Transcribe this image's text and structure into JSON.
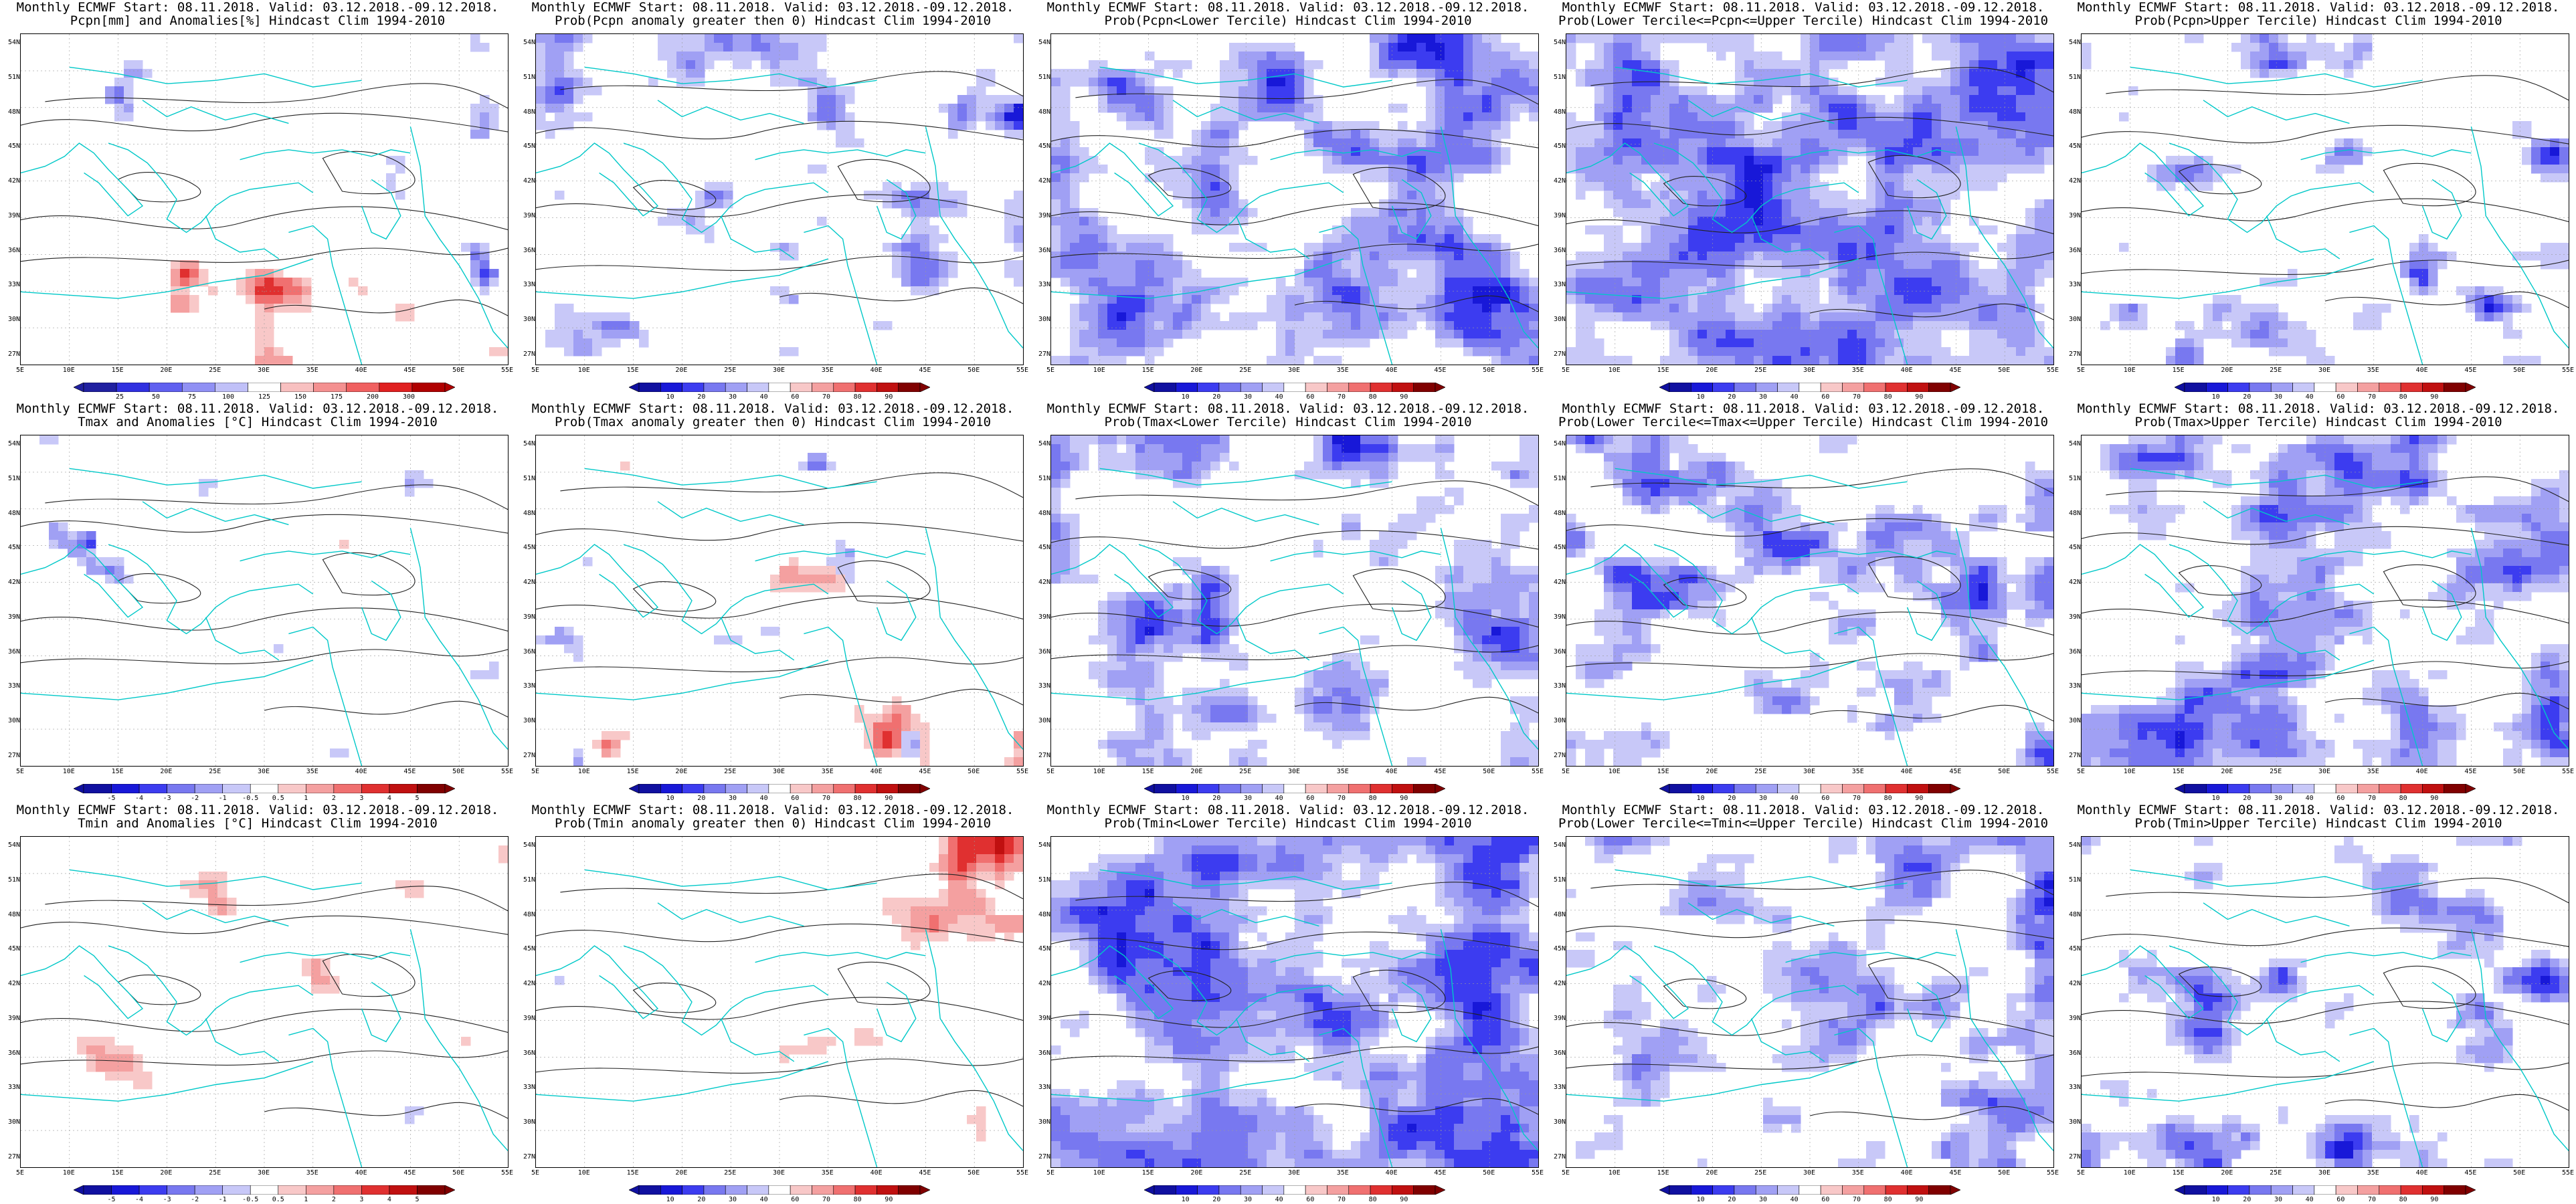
{
  "header": "Monthly ECMWF Start: 08.11.2018. Valid: 03.12.2018.-09.12.2018.",
  "colors": {
    "land_line": "#00c8c8",
    "contour": "#222222",
    "neg_scale": [
      "#1010a0",
      "#1818d8",
      "#3c3cf0",
      "#7878f0",
      "#a0a0f4",
      "#c8c8f8"
    ],
    "pos_scale": [
      "#f8c8c8",
      "#f4a0a0",
      "#f07070",
      "#e03030",
      "#c01010",
      "#800000"
    ]
  },
  "axes": {
    "lat_labels": [
      "54N",
      "51N",
      "48N",
      "45N",
      "42N",
      "39N",
      "36N",
      "33N",
      "30N",
      "27N"
    ],
    "lon_labels": [
      "5E",
      "10E",
      "15E",
      "20E",
      "25E",
      "30E",
      "35E",
      "40E",
      "45E",
      "50E",
      "55E"
    ]
  },
  "colorbars": {
    "pcpn_anom": [
      "25",
      "50",
      "75",
      "100",
      "125",
      "150",
      "175",
      "200",
      "300"
    ],
    "temp_anom": [
      "-5",
      "-4",
      "-3",
      "-2",
      "-1",
      "-0.5",
      "0.5",
      "1",
      "2",
      "3",
      "4",
      "5"
    ],
    "prob": [
      "10",
      "20",
      "30",
      "40",
      "60",
      "70",
      "80",
      "90"
    ]
  },
  "panels": [
    {
      "title": "Pcpn[mm] and Anomalies[%] Hindcast Clim 1994-2010",
      "field": "Pcpn",
      "kind": "anom",
      "bar": "pcpn_anom",
      "blue": 0.28,
      "red": 0.3
    },
    {
      "title": "Prob(Pcpn anomaly greater then 0) Hindcast Clim 1994-2010",
      "field": "Pcpn",
      "kind": "prob",
      "bar": "prob",
      "blue": 0.55,
      "red": 0.04
    },
    {
      "title": "Prob(Pcpn<Lower Tercile) Hindcast Clim 1994-2010",
      "field": "Pcpn",
      "kind": "prob",
      "bar": "prob",
      "blue": 0.75,
      "red": 0.1
    },
    {
      "title": "Prob(Lower Tercile<=Pcpn<=Upper Tercile) Hindcast Clim 1994-2010",
      "field": "Pcpn",
      "kind": "prob",
      "bar": "prob",
      "blue": 0.82,
      "red": 0.01
    },
    {
      "title": "Prob(Pcpn>Upper Tercile) Hindcast Clim 1994-2010",
      "field": "Pcpn",
      "kind": "prob",
      "bar": "prob",
      "blue": 0.5,
      "red": 0.02
    },
    {
      "title": "Tmax and Anomalies [°C] Hindcast Clim 1994-2010",
      "field": "Tmax",
      "kind": "anom",
      "bar": "temp_anom",
      "blue": 0.3,
      "red": 0.12
    },
    {
      "title": "Prob(Tmax anomaly greater then 0) Hindcast Clim 1994-2010",
      "field": "Tmax",
      "kind": "prob",
      "bar": "prob",
      "blue": 0.3,
      "red": 0.35
    },
    {
      "title": "Prob(Tmax<Lower Tercile) Hindcast Clim 1994-2010",
      "field": "Tmax",
      "kind": "prob",
      "bar": "prob",
      "blue": 0.65,
      "red": 0.05
    },
    {
      "title": "Prob(Lower Tercile<=Tmax<=Upper Tercile) Hindcast Clim 1994-2010",
      "field": "Tmax",
      "kind": "prob",
      "bar": "prob",
      "blue": 0.6,
      "red": 0.01
    },
    {
      "title": "Prob(Tmax>Upper Tercile) Hindcast Clim 1994-2010",
      "field": "Tmax",
      "kind": "prob",
      "bar": "prob",
      "blue": 0.72,
      "red": 0.02
    },
    {
      "title": "Tmin and Anomalies [°C] Hindcast Clim 1994-2010",
      "field": "Tmin",
      "kind": "anom",
      "bar": "temp_anom",
      "blue": 0.22,
      "red": 0.35
    },
    {
      "title": "Prob(Tmin anomaly greater then 0) Hindcast Clim 1994-2010",
      "field": "Tmin",
      "kind": "prob",
      "bar": "prob",
      "blue": 0.2,
      "red": 0.45
    },
    {
      "title": "Prob(Tmin<Lower Tercile) Hindcast Clim 1994-2010",
      "field": "Tmin",
      "kind": "prob",
      "bar": "prob",
      "blue": 0.85,
      "red": 0.01
    },
    {
      "title": "Prob(Lower Tercile<=Tmin<=Upper Tercile) Hindcast Clim 1994-2010",
      "field": "Tmin",
      "kind": "prob",
      "bar": "prob",
      "blue": 0.6,
      "red": 0.01
    },
    {
      "title": "Prob(Tmin>Upper Tercile) Hindcast Clim 1994-2010",
      "field": "Tmin",
      "kind": "prob",
      "bar": "prob",
      "blue": 0.55,
      "red": 0.03
    }
  ]
}
